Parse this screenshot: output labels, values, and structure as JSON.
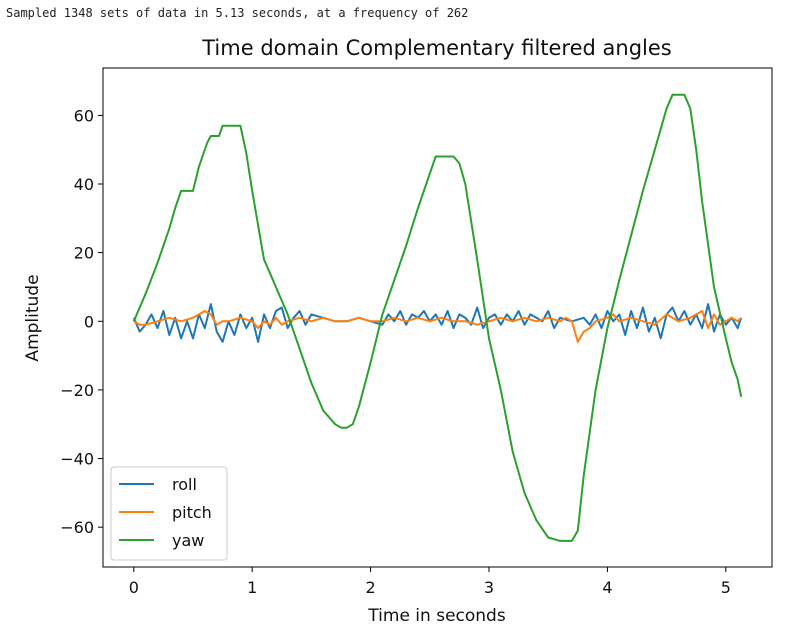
{
  "console": {
    "output": "Sampled 1348 sets of data in 5.13 seconds, at a frequency of 262"
  },
  "chart_data": {
    "type": "line",
    "title": "Time domain Complementary filtered angles",
    "xlabel": "Time in seconds",
    "ylabel": "Amplitude",
    "xlim": [
      -0.26,
      5.39
    ],
    "ylim": [
      -71.6,
      73.8
    ],
    "x_ticks": [
      0,
      1,
      2,
      3,
      4,
      5
    ],
    "x_tick_labels": [
      "0",
      "1",
      "2",
      "3",
      "4",
      "5"
    ],
    "y_ticks": [
      -60,
      -40,
      -20,
      0,
      20,
      40,
      60
    ],
    "y_tick_labels": [
      "−60",
      "−40",
      "−20",
      "0",
      "20",
      "40",
      "60"
    ],
    "grid": false,
    "legend": "lower-left",
    "series": [
      {
        "name": "roll",
        "color": "#1f77b4",
        "x": [
          0,
          0.05,
          0.1,
          0.15,
          0.2,
          0.25,
          0.3,
          0.35,
          0.4,
          0.45,
          0.5,
          0.55,
          0.6,
          0.65,
          0.7,
          0.75,
          0.8,
          0.85,
          0.9,
          0.95,
          1.0,
          1.05,
          1.1,
          1.15,
          1.2,
          1.25,
          1.3,
          1.35,
          1.4,
          1.45,
          1.5,
          1.6,
          1.7,
          1.8,
          1.9,
          2.0,
          2.1,
          2.15,
          2.2,
          2.25,
          2.3,
          2.35,
          2.4,
          2.45,
          2.5,
          2.55,
          2.6,
          2.65,
          2.7,
          2.75,
          2.8,
          2.85,
          2.9,
          2.95,
          3.0,
          3.05,
          3.1,
          3.15,
          3.2,
          3.25,
          3.3,
          3.35,
          3.4,
          3.45,
          3.5,
          3.55,
          3.6,
          3.7,
          3.8,
          3.85,
          3.9,
          3.95,
          4.0,
          4.05,
          4.1,
          4.15,
          4.2,
          4.25,
          4.3,
          4.35,
          4.4,
          4.45,
          4.5,
          4.55,
          4.6,
          4.65,
          4.7,
          4.75,
          4.8,
          4.85,
          4.9,
          4.95,
          5.0,
          5.05,
          5.1,
          5.13
        ],
        "y": [
          1,
          -3,
          -1,
          2,
          -2,
          3,
          -4,
          1,
          -5,
          0,
          -5,
          2,
          -2,
          5,
          -3,
          -6,
          0,
          -4,
          2,
          -2,
          1,
          -6,
          2,
          -2,
          3,
          4,
          -2,
          1,
          3,
          -1,
          2,
          1,
          0,
          0,
          1,
          0,
          -1,
          2,
          0,
          3,
          -1,
          2,
          1,
          3,
          0,
          2,
          -1,
          3,
          -2,
          2,
          1,
          -1,
          4,
          -2,
          1,
          2,
          -1,
          2,
          0,
          3,
          -1,
          2,
          1,
          0,
          3,
          -2,
          1,
          0,
          1,
          -1,
          2,
          -2,
          3,
          0,
          2,
          -4,
          3,
          -2,
          4,
          -3,
          1,
          -5,
          2,
          4,
          0,
          3,
          -1,
          2,
          -2,
          5,
          -3,
          2,
          -1,
          1,
          -2,
          1
        ]
      },
      {
        "name": "pitch",
        "color": "#ff7f0e",
        "x": [
          0,
          0.05,
          0.1,
          0.2,
          0.3,
          0.4,
          0.5,
          0.55,
          0.6,
          0.65,
          0.7,
          0.75,
          0.8,
          0.9,
          1.0,
          1.05,
          1.1,
          1.15,
          1.2,
          1.25,
          1.3,
          1.4,
          1.5,
          1.6,
          1.7,
          1.8,
          1.9,
          2.0,
          2.1,
          2.2,
          2.3,
          2.4,
          2.5,
          2.6,
          2.7,
          2.8,
          2.9,
          3.0,
          3.1,
          3.2,
          3.3,
          3.4,
          3.5,
          3.6,
          3.65,
          3.7,
          3.75,
          3.8,
          3.85,
          3.9,
          4.0,
          4.05,
          4.1,
          4.2,
          4.3,
          4.4,
          4.5,
          4.6,
          4.7,
          4.8,
          4.85,
          4.9,
          4.95,
          5.0,
          5.05,
          5.1,
          5.13
        ],
        "y": [
          0,
          -1,
          -1,
          0,
          1,
          0,
          1,
          2,
          3,
          2,
          -1,
          0,
          0,
          1,
          0,
          -2,
          0,
          -1,
          1,
          -1,
          0,
          1,
          0,
          1,
          0,
          0,
          1,
          0,
          0,
          1,
          0,
          1,
          0,
          1,
          0,
          0,
          -1,
          0,
          1,
          0,
          1,
          0,
          1,
          0,
          1,
          0,
          -6,
          -3,
          -2,
          0,
          1,
          2,
          0,
          1,
          0,
          -1,
          2,
          0,
          1,
          3,
          -2,
          2,
          -1,
          0,
          1,
          0,
          1
        ]
      },
      {
        "name": "yaw",
        "color": "#2ca02c",
        "x": [
          0,
          0.1,
          0.2,
          0.3,
          0.35,
          0.4,
          0.45,
          0.5,
          0.55,
          0.6,
          0.62,
          0.65,
          0.7,
          0.72,
          0.75,
          0.8,
          0.85,
          0.9,
          0.95,
          1.0,
          1.05,
          1.1,
          1.15,
          1.2,
          1.3,
          1.4,
          1.5,
          1.6,
          1.7,
          1.75,
          1.8,
          1.85,
          1.9,
          2.0,
          2.1,
          2.2,
          2.3,
          2.4,
          2.5,
          2.55,
          2.6,
          2.65,
          2.7,
          2.75,
          2.8,
          2.9,
          3.0,
          3.1,
          3.2,
          3.3,
          3.4,
          3.5,
          3.6,
          3.65,
          3.7,
          3.75,
          3.8,
          3.9,
          4.0,
          4.1,
          4.2,
          4.3,
          4.4,
          4.5,
          4.55,
          4.6,
          4.65,
          4.7,
          4.75,
          4.8,
          4.9,
          5.0,
          5.05,
          5.1,
          5.13
        ],
        "y": [
          0,
          8,
          17,
          27,
          33,
          38,
          38,
          38,
          45,
          50,
          52,
          54,
          54,
          54,
          57,
          57,
          57,
          57,
          49,
          38,
          28,
          18,
          14,
          10,
          2,
          -8,
          -18,
          -26,
          -30,
          -31,
          -31,
          -30,
          -25,
          -12,
          2,
          12,
          22,
          33,
          43,
          48,
          48,
          48,
          48,
          46,
          40,
          18,
          -5,
          -20,
          -38,
          -50,
          -58,
          -63,
          -64,
          -64,
          -64,
          -61,
          -45,
          -20,
          -2,
          12,
          25,
          38,
          50,
          62,
          66,
          66,
          66,
          62,
          50,
          35,
          10,
          -5,
          -12,
          -17,
          -22
        ]
      }
    ]
  }
}
